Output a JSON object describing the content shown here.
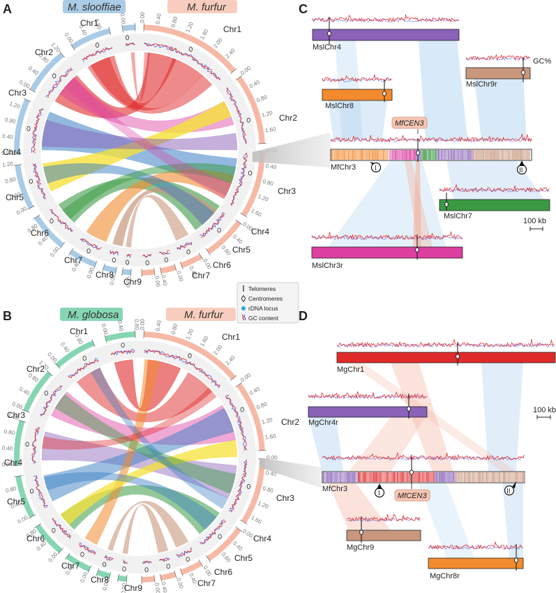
{
  "panels": [
    "A",
    "B",
    "C",
    "D"
  ],
  "species": {
    "sloo": "M. slooffiae",
    "furfur": "M. furfur",
    "glob": "M. globosa"
  },
  "colors": {
    "sloo_band": "#a9cbe6",
    "furfur_band": "#f6b9a6",
    "glob_band": "#86d6b3",
    "purple": "#8a62b8",
    "orange": "#f28a2e",
    "tan": "#c9977e",
    "green": "#3a9a44",
    "magenta": "#dd3fa0",
    "red": "#e02a2a",
    "yellow": "#f5e13a",
    "blue": "#3a7fc4",
    "link_blue": "#a9cfee",
    "link_red": "#f4ad98"
  },
  "circos_A": {
    "left_chrs": [
      "Chr1",
      "Chr2",
      "Chr3",
      "Chr4",
      "Chr5",
      "Chr6",
      "Chr7",
      "Chr8",
      "Chr9"
    ],
    "right_chrs": [
      "Chr1",
      "Chr2",
      "Chr3",
      "Chr4",
      "Chr5",
      "Chr6",
      "Chr7"
    ]
  },
  "circos_B": {
    "left_chrs": [
      "Chr1",
      "Chr2",
      "Chr3",
      "Chr4",
      "Chr5",
      "Chr6",
      "Chr7",
      "Chr8",
      "Chr9"
    ],
    "right_chrs": [
      "Chr1",
      "Chr2",
      "Chr3",
      "Chr4",
      "Chr5",
      "Chr6",
      "Chr7"
    ]
  },
  "ticks": [
    "0.00",
    "0.40",
    "0.80",
    "1.20",
    "1.60",
    "2.00",
    "2.40",
    "2.80"
  ],
  "legend": {
    "telomeres": "Telomeres",
    "centromeres": "Centromeres",
    "rdna": "rDNA locus",
    "gc": "GC content"
  },
  "panel_C": {
    "chroms": [
      "MslChr4",
      "MslChr9r",
      "MslChr8",
      "MfChr3",
      "MslChr7",
      "MslChr3r"
    ],
    "cen_label": "MfCEN3",
    "gc_label": "GC%",
    "markers": [
      "I",
      "II"
    ],
    "scale": "100 kb"
  },
  "panel_D": {
    "chroms": [
      "MgChr1",
      "MgChr4r",
      "MfChr3",
      "MgChr9",
      "MgChr8r"
    ],
    "cen_label": "MfCEN3",
    "markers": [
      "I",
      "II"
    ],
    "scale": "100 kb"
  }
}
